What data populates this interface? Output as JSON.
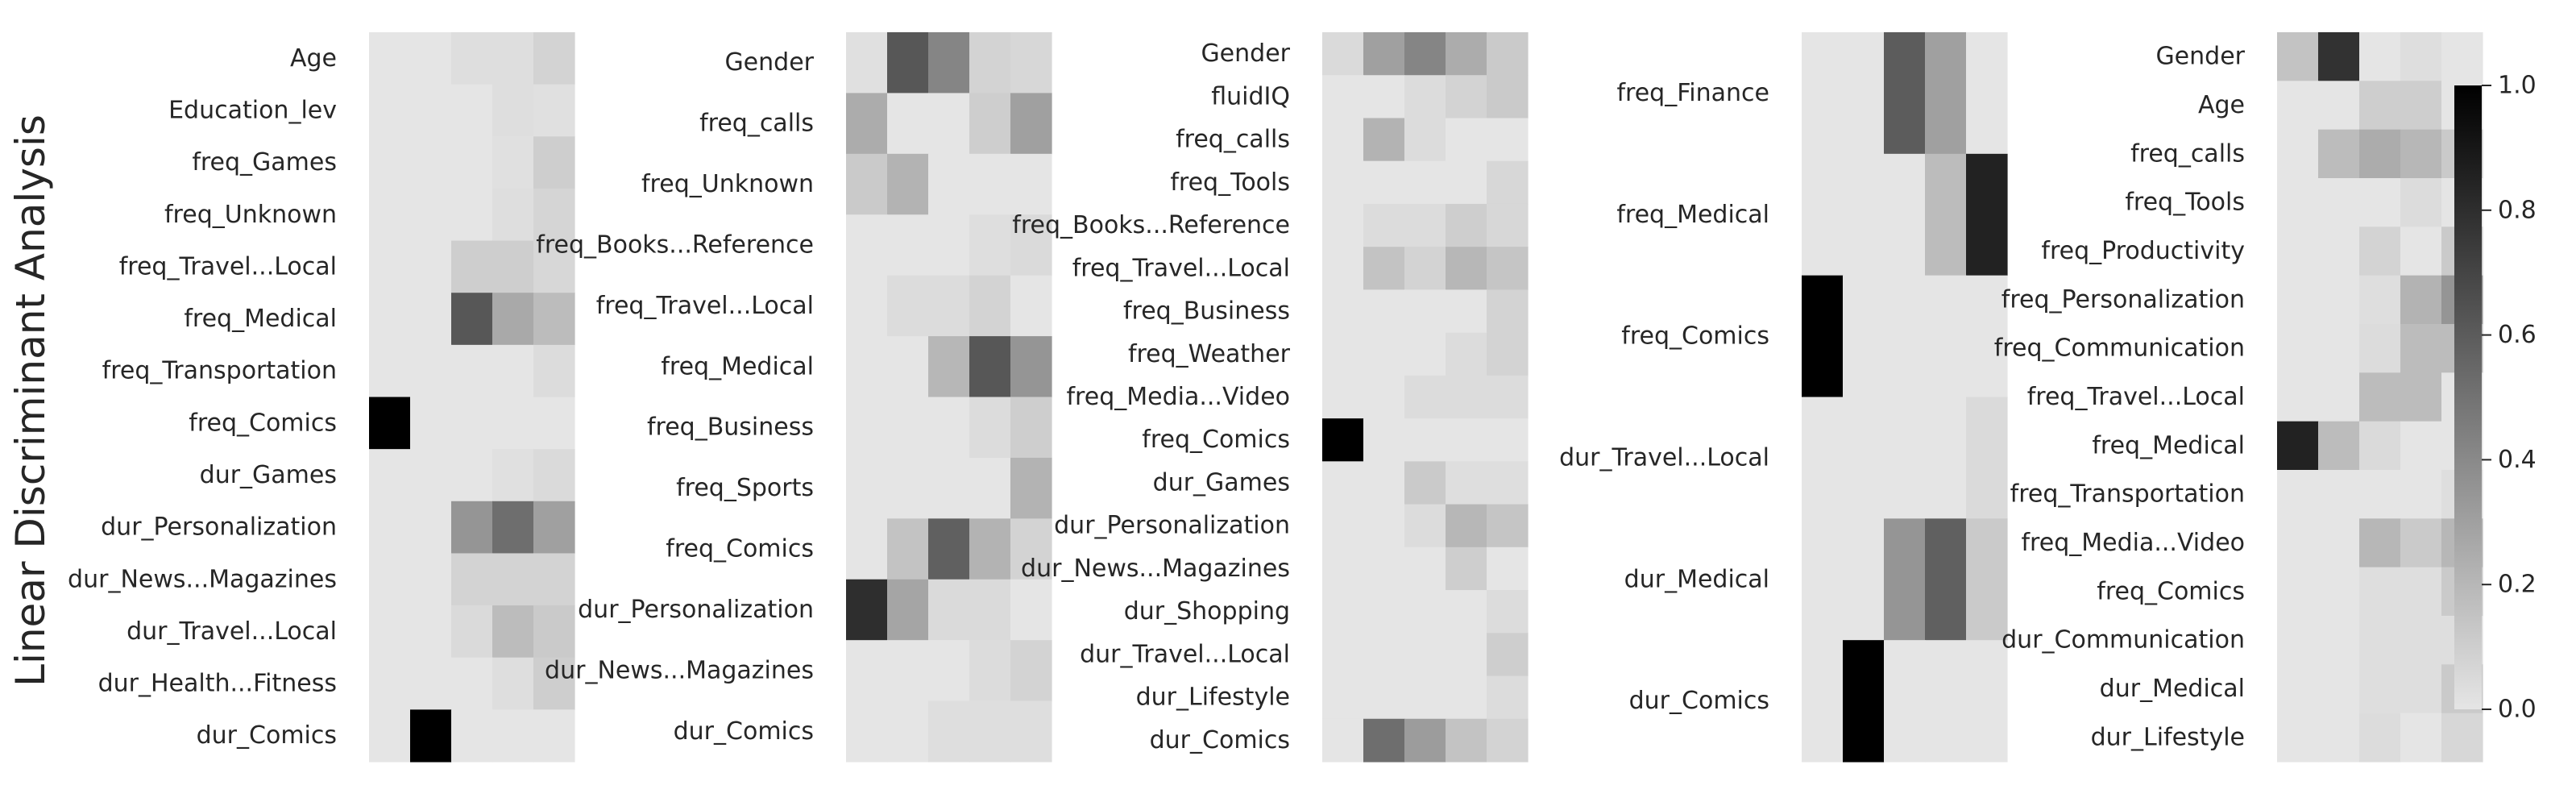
{
  "ylabel_left": "Linear Discriminant Analysis",
  "colormap": {
    "low": "#e5e5e5",
    "high": "#000000"
  },
  "colorbar": {
    "ticks": [
      0.0,
      0.2,
      0.4,
      0.6,
      0.8,
      1.0
    ],
    "tick_labels": [
      "0.0",
      "0.2",
      "0.4",
      "0.6",
      "0.8",
      "1.0"
    ]
  },
  "chart_data": [
    {
      "type": "heatmap",
      "value_range": [
        0,
        1
      ],
      "rows": [
        "Age",
        "Education_lev",
        "freq_Games",
        "freq_Unknown",
        "freq_Travel...Local",
        "freq_Medical",
        "freq_Transportation",
        "freq_Comics",
        "dur_Games",
        "dur_Personalization",
        "dur_News...Magazines",
        "dur_Travel...Local",
        "dur_Health...Fitness",
        "dur_Comics"
      ],
      "values": [
        [
          0.0,
          0.0,
          0.03,
          0.03,
          0.08
        ],
        [
          0.0,
          0.0,
          0.0,
          0.03,
          0.02
        ],
        [
          0.0,
          0.0,
          0.0,
          0.02,
          0.1
        ],
        [
          0.0,
          0.0,
          0.0,
          0.03,
          0.07
        ],
        [
          0.0,
          0.0,
          0.1,
          0.1,
          0.06
        ],
        [
          0.0,
          0.0,
          0.62,
          0.26,
          0.18
        ],
        [
          0.0,
          0.0,
          0.0,
          0.0,
          0.04
        ],
        [
          1.0,
          0.0,
          0.0,
          0.0,
          0.0
        ],
        [
          0.0,
          0.0,
          0.0,
          0.02,
          0.05
        ],
        [
          0.0,
          0.0,
          0.35,
          0.52,
          0.3
        ],
        [
          0.0,
          0.0,
          0.08,
          0.08,
          0.08
        ],
        [
          0.0,
          0.0,
          0.05,
          0.18,
          0.12
        ],
        [
          0.0,
          0.0,
          0.0,
          0.03,
          0.1
        ],
        [
          0.0,
          1.0,
          0.0,
          0.0,
          0.0
        ]
      ]
    },
    {
      "type": "heatmap",
      "value_range": [
        0,
        1
      ],
      "rows": [
        "Gender",
        "freq_calls",
        "freq_Unknown",
        "freq_Books...Reference",
        "freq_Travel...Local",
        "freq_Medical",
        "freq_Business",
        "freq_Sports",
        "freq_Comics",
        "dur_Personalization",
        "dur_News...Magazines",
        "dur_Comics"
      ],
      "values": [
        [
          0.02,
          0.62,
          0.42,
          0.08,
          0.06
        ],
        [
          0.25,
          0.0,
          0.0,
          0.1,
          0.3
        ],
        [
          0.12,
          0.22,
          0.0,
          0.0,
          0.0
        ],
        [
          0.0,
          0.0,
          0.0,
          0.03,
          0.05
        ],
        [
          0.0,
          0.04,
          0.04,
          0.08,
          0.0
        ],
        [
          0.0,
          0.0,
          0.2,
          0.62,
          0.35
        ],
        [
          0.0,
          0.0,
          0.0,
          0.04,
          0.1
        ],
        [
          0.0,
          0.0,
          0.0,
          0.0,
          0.22
        ],
        [
          0.0,
          0.15,
          0.58,
          0.22,
          0.08
        ],
        [
          0.8,
          0.28,
          0.05,
          0.05,
          0.0
        ],
        [
          0.0,
          0.0,
          0.0,
          0.04,
          0.08
        ],
        [
          0.0,
          0.0,
          0.03,
          0.03,
          0.03
        ]
      ]
    },
    {
      "type": "heatmap",
      "value_range": [
        0,
        1
      ],
      "rows": [
        "Gender",
        "fluidIQ",
        "freq_calls",
        "freq_Tools",
        "freq_Books...Reference",
        "freq_Travel...Local",
        "freq_Business",
        "freq_Weather",
        "freq_Media...Video",
        "freq_Comics",
        "dur_Games",
        "dur_Personalization",
        "dur_News...Magazines",
        "dur_Shopping",
        "dur_Travel...Local",
        "dur_Lifestyle",
        "dur_Comics"
      ],
      "values": [
        [
          0.05,
          0.3,
          0.42,
          0.25,
          0.12
        ],
        [
          0.0,
          0.0,
          0.04,
          0.08,
          0.12
        ],
        [
          0.0,
          0.22,
          0.04,
          0.0,
          0.0
        ],
        [
          0.0,
          0.0,
          0.0,
          0.0,
          0.06
        ],
        [
          0.0,
          0.04,
          0.04,
          0.1,
          0.06
        ],
        [
          0.0,
          0.15,
          0.08,
          0.2,
          0.14
        ],
        [
          0.0,
          0.0,
          0.0,
          0.0,
          0.08
        ],
        [
          0.0,
          0.0,
          0.0,
          0.04,
          0.08
        ],
        [
          0.0,
          0.0,
          0.04,
          0.04,
          0.04
        ],
        [
          1.0,
          0.0,
          0.0,
          0.0,
          0.0
        ],
        [
          0.0,
          0.0,
          0.12,
          0.03,
          0.03
        ],
        [
          0.0,
          0.0,
          0.04,
          0.2,
          0.14
        ],
        [
          0.0,
          0.0,
          0.0,
          0.1,
          0.0
        ],
        [
          0.0,
          0.0,
          0.0,
          0.0,
          0.04
        ],
        [
          0.0,
          0.0,
          0.0,
          0.0,
          0.1
        ],
        [
          0.0,
          0.0,
          0.0,
          0.0,
          0.04
        ],
        [
          0.0,
          0.52,
          0.32,
          0.15,
          0.08
        ]
      ]
    },
    {
      "type": "heatmap",
      "value_range": [
        0,
        1
      ],
      "rows": [
        "freq_Finance",
        "freq_Medical",
        "freq_Comics",
        "dur_Travel...Local",
        "dur_Medical",
        "dur_Comics"
      ],
      "values": [
        [
          0.0,
          0.0,
          0.6,
          0.3,
          0.0
        ],
        [
          0.0,
          0.0,
          0.0,
          0.18,
          0.85
        ],
        [
          1.0,
          0.0,
          0.0,
          0.0,
          0.0
        ],
        [
          0.0,
          0.0,
          0.0,
          0.0,
          0.05
        ],
        [
          0.0,
          0.0,
          0.35,
          0.58,
          0.12
        ],
        [
          0.0,
          1.0,
          0.0,
          0.0,
          0.0
        ]
      ]
    },
    {
      "type": "heatmap",
      "value_range": [
        0,
        1
      ],
      "rows": [
        "Gender",
        "Age",
        "freq_calls",
        "freq_Tools",
        "freq_Productivity",
        "freq_Personalization",
        "freq_Communication",
        "freq_Travel...Local",
        "freq_Medical",
        "freq_Transportation",
        "freq_Media...Video",
        "freq_Comics",
        "dur_Communication",
        "dur_Medical",
        "dur_Lifestyle"
      ],
      "values": [
        [
          0.15,
          0.78,
          0.0,
          0.03,
          0.0
        ],
        [
          0.0,
          0.0,
          0.1,
          0.1,
          0.0
        ],
        [
          0.0,
          0.18,
          0.25,
          0.2,
          0.12
        ],
        [
          0.0,
          0.0,
          0.0,
          0.04,
          0.0
        ],
        [
          0.0,
          0.0,
          0.08,
          0.0,
          0.12
        ],
        [
          0.0,
          0.0,
          0.03,
          0.22,
          0.35
        ],
        [
          0.0,
          0.0,
          0.04,
          0.18,
          0.18
        ],
        [
          0.0,
          0.0,
          0.18,
          0.18,
          0.0
        ],
        [
          0.85,
          0.18,
          0.05,
          0.0,
          0.0
        ],
        [
          0.0,
          0.0,
          0.0,
          0.0,
          0.03
        ],
        [
          0.0,
          0.0,
          0.2,
          0.12,
          0.2
        ],
        [
          0.0,
          0.0,
          0.03,
          0.03,
          0.12
        ],
        [
          0.0,
          0.0,
          0.03,
          0.03,
          0.03
        ],
        [
          0.0,
          0.0,
          0.03,
          0.03,
          0.12
        ],
        [
          0.0,
          0.0,
          0.04,
          0.0,
          0.06
        ]
      ]
    }
  ]
}
